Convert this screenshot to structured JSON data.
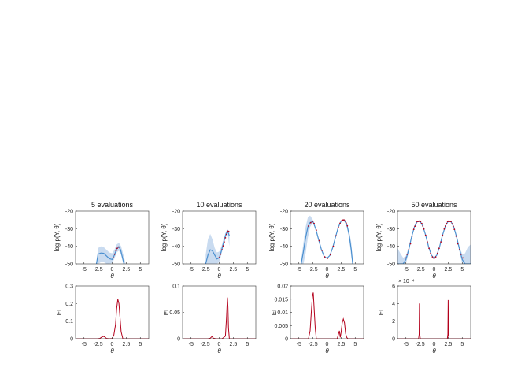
{
  "chart_data": [
    {
      "type": "line",
      "title": "5 evaluations",
      "xlabel": "θ",
      "ylabel": "log p(Y, θ)",
      "xlim": [
        -6.5,
        6.5
      ],
      "ylim": [
        -50,
        -20
      ],
      "xticks": [
        -5,
        -2.5,
        0,
        2.5,
        5
      ],
      "xtick_labels": [
        "-5",
        "-2.5",
        "0",
        "2.5",
        "5"
      ],
      "yticks": [
        -50,
        -40,
        -30,
        -20
      ],
      "ytick_labels": [
        "-50",
        "-40",
        "-30",
        "-20"
      ],
      "grid": false,
      "band": {
        "x": [
          -2.8,
          -2.5,
          -2.0,
          -1.5,
          -1.0,
          -0.5,
          0.0,
          0.4,
          0.8,
          1.2,
          1.6,
          2.0,
          2.4
        ],
        "upper": [
          -50,
          -41,
          -40,
          -40.5,
          -42,
          -43.5,
          -44,
          -42,
          -39,
          -38,
          -40,
          -45,
          -50
        ],
        "lower": [
          -50,
          -50,
          -49,
          -49,
          -50,
          -50,
          -49.5,
          -47,
          -43.5,
          -42.5,
          -45,
          -50,
          -50
        ]
      },
      "mean": {
        "x": [
          -2.8,
          -2.5,
          -2.0,
          -1.5,
          -1.0,
          -0.5,
          0.0,
          0.4,
          0.8,
          1.2,
          1.5,
          1.8,
          2.1
        ],
        "y": [
          -50,
          -44.5,
          -43.8,
          -44,
          -45.5,
          -47,
          -47.5,
          -45,
          -41.5,
          -40.3,
          -42,
          -46,
          -50
        ]
      },
      "points": {
        "x": [
          0.2,
          0.45,
          0.7,
          0.9,
          1.1
        ],
        "y": [
          -46.5,
          -44.5,
          -42.5,
          -41.2,
          -40.4
        ]
      }
    },
    {
      "type": "line",
      "title": "10 evaluations",
      "xlabel": "θ",
      "ylabel": "log p(Y, θ)",
      "xlim": [
        -6.5,
        6.5
      ],
      "ylim": [
        -50,
        -20
      ],
      "xticks": [
        -5,
        -2.5,
        0,
        2.5,
        5
      ],
      "xtick_labels": [
        "-5",
        "-2.5",
        "0",
        "2.5",
        "5"
      ],
      "yticks": [
        -50,
        -40,
        -30,
        -20
      ],
      "ytick_labels": [
        "-50",
        "-40",
        "-30",
        "-20"
      ],
      "grid": false,
      "band": {
        "x": [
          -2.4,
          -2.0,
          -1.6,
          -1.2,
          -0.8,
          -0.4,
          0.0,
          0.4,
          0.8,
          1.2,
          1.5,
          1.8
        ],
        "upper": [
          -45,
          -36,
          -33,
          -36,
          -41,
          -43.5,
          -43,
          -40,
          -35.5,
          -31.5,
          -30.5,
          -32
        ],
        "lower": [
          -50,
          -50,
          -50,
          -50,
          -50,
          -50,
          -49,
          -44.5,
          -39.5,
          -34.5,
          -32.5,
          -40
        ]
      },
      "mean": {
        "x": [
          -2.4,
          -2.0,
          -1.6,
          -1.2,
          -0.8,
          -0.4,
          0.0,
          0.4,
          0.8,
          1.2,
          1.5,
          1.8
        ],
        "y": [
          -50,
          -45,
          -42,
          -42.5,
          -45,
          -47.2,
          -46.5,
          -42.5,
          -37.5,
          -33,
          -31.3,
          -34
        ]
      },
      "points": {
        "x": [
          0.0,
          0.25,
          0.5,
          0.7,
          0.9,
          1.1,
          1.3,
          1.45,
          1.6,
          1.7
        ],
        "y": [
          -46.5,
          -44.5,
          -42,
          -39.8,
          -37.5,
          -35.2,
          -33.2,
          -32,
          -31.4,
          -31.6
        ]
      }
    },
    {
      "type": "line",
      "title": "20 evaluations",
      "xlabel": "θ",
      "ylabel": "log p(Y, θ)",
      "xlim": [
        -6.5,
        6.5
      ],
      "ylim": [
        -50,
        -20
      ],
      "xticks": [
        -5,
        -2.5,
        0,
        2.5,
        5
      ],
      "xtick_labels": [
        "-5",
        "-2.5",
        "0",
        "2.5",
        "5"
      ],
      "yticks": [
        -50,
        -40,
        -30,
        -20
      ],
      "ytick_labels": [
        "-50",
        "-40",
        "-30",
        "-20"
      ],
      "grid": false,
      "band": {
        "x": [
          -4.7,
          -4.2,
          -3.8,
          -3.4,
          -3.0,
          -2.5,
          -2.0,
          -1.5,
          -1.0,
          -0.5,
          0.0,
          0.5,
          1.0,
          1.5,
          2.0,
          2.5,
          3.0,
          3.5,
          3.9,
          4.3,
          4.6
        ],
        "upper": [
          -50,
          -38,
          -29,
          -23.5,
          -22.5,
          -25,
          -30,
          -36,
          -41.5,
          -45.5,
          -46.5,
          -45,
          -40.5,
          -34.5,
          -29,
          -25.5,
          -24.5,
          -26.5,
          -31,
          -38,
          -50
        ],
        "lower": [
          -50,
          -50,
          -44,
          -35,
          -29,
          -26.5,
          -30.5,
          -36.5,
          -42,
          -46,
          -47,
          -45.5,
          -41,
          -35,
          -29.3,
          -25.8,
          -25.3,
          -28.5,
          -35,
          -46,
          -50
        ]
      },
      "mean": {
        "x": [
          -4.6,
          -4.2,
          -3.8,
          -3.4,
          -3.0,
          -2.5,
          -2.0,
          -1.5,
          -1.0,
          -0.5,
          0.0,
          0.5,
          1.0,
          1.5,
          2.0,
          2.5,
          3.0,
          3.5,
          3.9,
          4.3,
          4.55
        ],
        "y": [
          -50,
          -43,
          -35,
          -29,
          -26.5,
          -25.8,
          -30.2,
          -36.2,
          -41.8,
          -45.8,
          -46.8,
          -45.2,
          -40.8,
          -34.8,
          -29.2,
          -25.7,
          -25,
          -27.5,
          -33,
          -42,
          -50
        ]
      },
      "points": {
        "x": [
          -3.3,
          -2.9,
          -2.6,
          -2.3,
          -1.9,
          -1.4,
          -0.9,
          -0.4,
          0.1,
          0.6,
          1.1,
          1.6,
          2.0,
          2.3,
          2.6,
          2.8,
          3.0,
          3.2,
          3.4,
          3.6
        ],
        "y": [
          -28.5,
          -26.6,
          -25.9,
          -27,
          -30.8,
          -36.8,
          -42.3,
          -46,
          -46.8,
          -44.8,
          -40,
          -34,
          -29.2,
          -26.9,
          -25.5,
          -25.1,
          -25,
          -25.6,
          -26.8,
          -28.4
        ]
      }
    },
    {
      "type": "line",
      "title": "50 evaluations",
      "xlabel": "θ",
      "ylabel": "log p(Y, θ)",
      "xlim": [
        -6.5,
        6.5
      ],
      "ylim": [
        -50,
        -20
      ],
      "xticks": [
        -5,
        -2.5,
        0,
        2.5,
        5
      ],
      "xtick_labels": [
        "-5",
        "-2.5",
        "0",
        "2.5",
        "5"
      ],
      "yticks": [
        -50,
        -40,
        -30,
        -20
      ],
      "ytick_labels": [
        "-50",
        "-40",
        "-30",
        "-20"
      ],
      "grid": false,
      "band": {
        "x": [
          -6.5,
          -6.0,
          -5.5,
          -5.0,
          -4.5,
          -4.0,
          -3.5,
          -3.0,
          -2.5,
          -2.0,
          -1.5,
          -1.0,
          -0.5,
          0.0,
          0.5,
          1.0,
          1.5,
          2.0,
          2.5,
          3.0,
          3.5,
          4.0,
          4.5,
          5.0,
          5.5,
          6.0,
          6.5
        ],
        "upper": [
          -41,
          -44,
          -46.5,
          -45.5,
          -40.5,
          -34,
          -28.7,
          -25.8,
          -25.6,
          -28.2,
          -33.4,
          -39.6,
          -44.6,
          -46.6,
          -44.6,
          -39.6,
          -33.4,
          -28.2,
          -25.6,
          -25.8,
          -28.7,
          -34,
          -40,
          -44.5,
          -44,
          -40.5,
          -39
        ],
        "lower": [
          -50,
          -50,
          -50,
          -50,
          -43.5,
          -35.5,
          -29.3,
          -26.2,
          -26,
          -28.8,
          -34,
          -40.2,
          -45.2,
          -47.2,
          -45.2,
          -40.2,
          -34,
          -28.8,
          -26,
          -26.2,
          -29.3,
          -35.5,
          -43,
          -50,
          -50,
          -50,
          -50
        ]
      },
      "mean": {
        "x": [
          -6.5,
          -6.0,
          -5.5,
          -5.0,
          -4.5,
          -4.0,
          -3.5,
          -3.0,
          -2.5,
          -2.0,
          -1.5,
          -1.0,
          -0.5,
          0.0,
          0.5,
          1.0,
          1.5,
          2.0,
          2.5,
          3.0,
          3.5,
          4.0,
          4.5,
          5.0,
          5.5,
          6.0,
          6.5
        ],
        "y": [
          -50,
          -50,
          -50,
          -47.5,
          -42,
          -34.7,
          -29,
          -26,
          -25.8,
          -28.5,
          -33.7,
          -39.9,
          -44.9,
          -46.9,
          -44.9,
          -39.9,
          -33.7,
          -28.5,
          -25.8,
          -26,
          -29,
          -34.7,
          -41.5,
          -47.5,
          -50,
          -50,
          -50
        ]
      },
      "points": {
        "x": [
          -5.1,
          -4.8,
          -4.5,
          -4.2,
          -3.9,
          -3.6,
          -3.4,
          -3.2,
          -3.0,
          -2.8,
          -2.6,
          -2.5,
          -2.4,
          -2.2,
          -2.0,
          -1.8,
          -1.5,
          -1.2,
          -0.9,
          -0.6,
          -0.3,
          0.0,
          0.3,
          0.6,
          0.9,
          1.2,
          1.5,
          1.8,
          2.0,
          2.2,
          2.4,
          2.5,
          2.6,
          2.8,
          3.0,
          3.2,
          3.4,
          3.6,
          3.9,
          4.2,
          4.5,
          4.8,
          5.1
        ],
        "y": [
          -46.6,
          -44.6,
          -42,
          -38.6,
          -34.2,
          -30.4,
          -28.6,
          -27.2,
          -26,
          -25.8,
          -25.7,
          -25.8,
          -25.9,
          -27,
          -28.5,
          -30.2,
          -33.7,
          -37.5,
          -41.2,
          -44,
          -46,
          -46.9,
          -46,
          -44,
          -41.2,
          -37.5,
          -33.7,
          -30.2,
          -28.5,
          -27,
          -25.9,
          -25.8,
          -25.7,
          -25.8,
          -26,
          -27.2,
          -28.6,
          -30.4,
          -34.2,
          -38.6,
          -42,
          -44.6,
          -46.6
        ]
      }
    },
    {
      "type": "line",
      "title": "",
      "xlabel": "θ",
      "ylabel": "EI",
      "xlim": [
        -6.5,
        6.5
      ],
      "ylim": [
        0,
        0.3
      ],
      "xticks": [
        -5,
        -2.5,
        0,
        2.5,
        5
      ],
      "xtick_labels": [
        "-5",
        "-2.5",
        "0",
        "2.5",
        "5"
      ],
      "yticks": [
        0,
        0.1,
        0.2,
        0.3
      ],
      "ytick_labels": [
        "0",
        "0.1",
        "0.2",
        "0.3"
      ],
      "grid": false,
      "series": [
        {
          "x": [
            -6.5,
            -2.6,
            -2.2,
            -1.9,
            -1.6,
            -1.3,
            -1.0,
            -0.5,
            0.0,
            0.3,
            0.6,
            0.8,
            1.0,
            1.2,
            1.4,
            1.6,
            1.9,
            6.5
          ],
          "y": [
            0,
            0,
            0.002,
            0.008,
            0.014,
            0.01,
            0.002,
            0,
            0.001,
            0.02,
            0.08,
            0.17,
            0.225,
            0.2,
            0.12,
            0.04,
            0,
            0
          ]
        }
      ]
    },
    {
      "type": "line",
      "title": "",
      "xlabel": "θ",
      "ylabel": "EI",
      "xlim": [
        -6.5,
        6.5
      ],
      "ylim": [
        0,
        0.1
      ],
      "xticks": [
        -5,
        -2.5,
        0,
        2.5,
        5
      ],
      "xtick_labels": [
        "-5",
        "-2.5",
        "0",
        "2.5",
        "5"
      ],
      "yticks": [
        0,
        0.05,
        0.1
      ],
      "ytick_labels": [
        "0",
        "0.05",
        "0.1"
      ],
      "grid": false,
      "series": [
        {
          "x": [
            -6.5,
            -2.0,
            -1.6,
            -1.3,
            -1.0,
            -0.6,
            0.5,
            1.1,
            1.3,
            1.45,
            1.55,
            1.65,
            1.8,
            6.5
          ],
          "y": [
            0,
            0,
            0.001,
            0.004,
            0.001,
            0,
            0,
            0.005,
            0.04,
            0.078,
            0.06,
            0.02,
            0,
            0
          ]
        }
      ]
    },
    {
      "type": "line",
      "title": "",
      "xlabel": "θ",
      "ylabel": "EI",
      "xlim": [
        -6.5,
        6.5
      ],
      "ylim": [
        0,
        0.02
      ],
      "xticks": [
        -5,
        -2.5,
        0,
        2.5,
        5
      ],
      "xtick_labels": [
        "-5",
        "-2.5",
        "0",
        "2.5",
        "5"
      ],
      "yticks": [
        0,
        0.005,
        0.01,
        0.015,
        0.02
      ],
      "ytick_labels": [
        "0",
        "0.005",
        "0.01",
        "0.015",
        "0.02"
      ],
      "grid": false,
      "series": [
        {
          "x": [
            -6.5,
            -3.3,
            -3.0,
            -2.8,
            -2.6,
            -2.45,
            -2.3,
            -2.1,
            -1.9,
            1.8,
            2.0,
            2.2,
            2.35,
            2.5,
            2.7,
            2.9,
            3.1,
            3.3,
            3.5,
            3.7,
            6.5
          ],
          "y": [
            0,
            0,
            0.003,
            0.01,
            0.016,
            0.0175,
            0.012,
            0.004,
            0,
            0,
            0.0015,
            0.003,
            0.0005,
            0.0025,
            0.006,
            0.0075,
            0.006,
            0.002,
            0.0005,
            0,
            0
          ]
        }
      ]
    },
    {
      "type": "line",
      "title": "",
      "xlabel": "θ",
      "ylabel": "EI",
      "y_exponent": "× 10⁻⁴",
      "xlim": [
        -6.5,
        6.5
      ],
      "ylim": [
        0,
        6
      ],
      "xticks": [
        -5,
        -2.5,
        0,
        2.5,
        5
      ],
      "xtick_labels": [
        "-5",
        "-2.5",
        "0",
        "2.5",
        "5"
      ],
      "yticks": [
        0,
        2,
        4,
        6
      ],
      "ytick_labels": [
        "0",
        "2",
        "4",
        "6"
      ],
      "grid": false,
      "series": [
        {
          "x": [
            -6.5,
            -2.75,
            -2.65,
            -2.6,
            -2.55,
            -2.45,
            2.35,
            2.45,
            2.5,
            2.55,
            2.65,
            6.5
          ],
          "y": [
            0,
            0,
            0.5,
            4.0,
            0.5,
            0,
            0,
            0.5,
            4.4,
            0.5,
            0,
            0
          ]
        }
      ]
    }
  ]
}
